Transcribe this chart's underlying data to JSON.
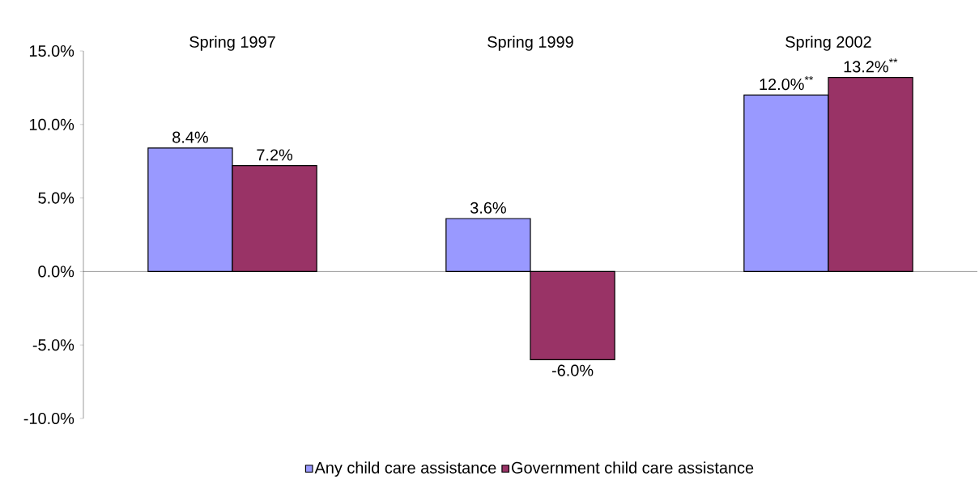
{
  "chart_data": {
    "type": "bar",
    "categories": [
      "Spring 1997",
      "Spring 1999",
      "Spring 2002"
    ],
    "series": [
      {
        "name": "Any child care assistance",
        "color": "#9999ff",
        "values": [
          8.4,
          3.6,
          12.0
        ],
        "value_labels": [
          "8.4%",
          "3.6%",
          "12.0%$^{**}$"
        ]
      },
      {
        "name": "Government child care assistance",
        "color": "#993366",
        "values": [
          7.2,
          -6.0,
          13.2
        ],
        "value_labels": [
          "7.2%",
          "-6.0%",
          "13.2%$^{**}$"
        ]
      }
    ],
    "ylim": [
      -10,
      15
    ],
    "yticks": [
      {
        "value": -10,
        "label": "-10.0%"
      },
      {
        "value": -5,
        "label": "-5.0%"
      },
      {
        "value": 0,
        "label": "0.0%"
      },
      {
        "value": 5,
        "label": "5.0%"
      },
      {
        "value": 10,
        "label": "10.0%"
      },
      {
        "value": 15,
        "label": "15.0%"
      }
    ],
    "legend": "bottom"
  }
}
